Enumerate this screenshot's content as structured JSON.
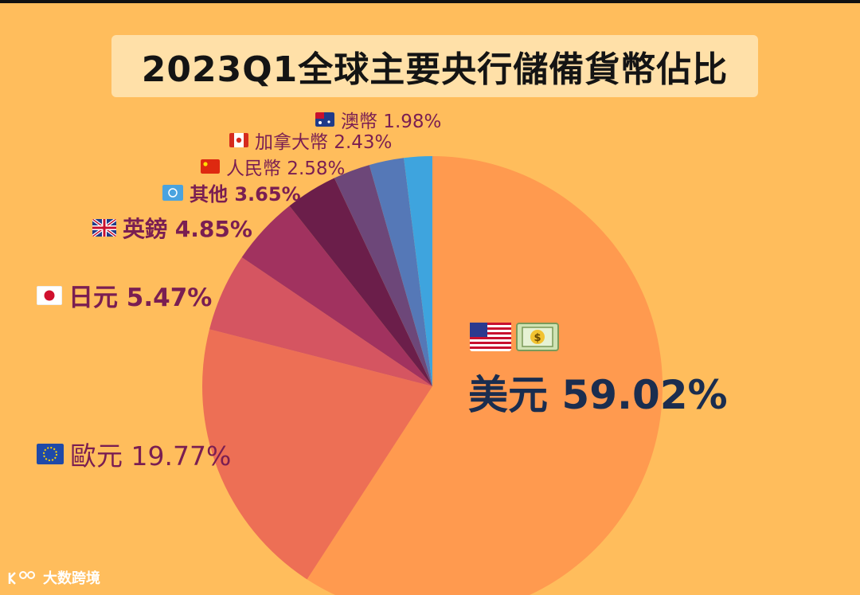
{
  "title": "2023Q1全球主要央行儲備貨幣佔比",
  "chart_data": {
    "type": "pie",
    "title": "2023Q1全球主要央行儲備貨幣佔比",
    "slices": [
      {
        "name": "美元",
        "value": 59.02,
        "label": "59.02%",
        "color": "#ff9a4f"
      },
      {
        "name": "歐元",
        "value": 19.77,
        "label": "19.77%",
        "color": "#ed6f55"
      },
      {
        "name": "日元",
        "value": 5.47,
        "label": "5.47%",
        "color": "#d55561"
      },
      {
        "name": "英鎊",
        "value": 4.85,
        "label": "4.85%",
        "color": "#a1325f"
      },
      {
        "name": "其他",
        "value": 3.65,
        "label": "3.65%",
        "color": "#6b1e4a"
      },
      {
        "name": "人民幣",
        "value": 2.58,
        "label": "2.58%",
        "color": "#6d4779"
      },
      {
        "name": "加拿大幣",
        "value": 2.43,
        "label": "2.43%",
        "color": "#5578b7"
      },
      {
        "name": "澳幣",
        "value": 1.98,
        "label": "1.98%",
        "color": "#3ea4de"
      }
    ]
  },
  "labels": {
    "usd": "美元 59.02%",
    "eur": "歐元 19.77%",
    "jpy": "日元 5.47%",
    "gbp": "英鎊 4.85%",
    "other": "其他 3.65%",
    "cny": "人民幣 2.58%",
    "cad": "加拿大幣 2.43%",
    "aud": "澳幣 1.98%"
  },
  "watermark": "大数跨境"
}
